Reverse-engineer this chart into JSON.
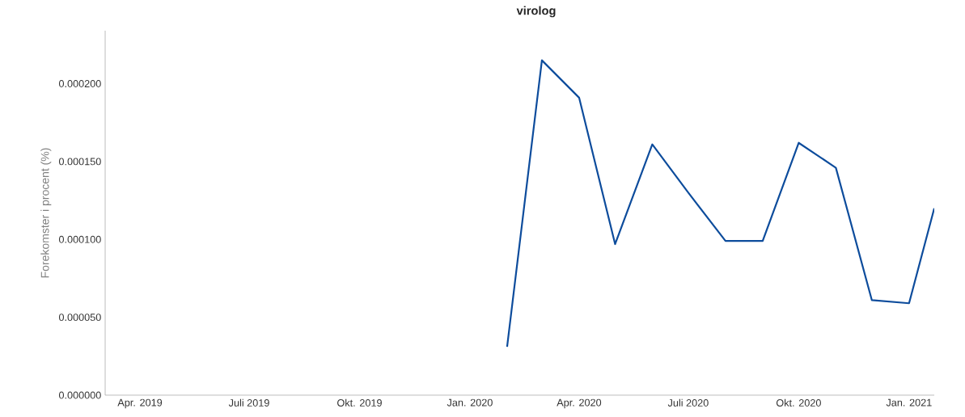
{
  "chart_data": {
    "type": "line",
    "title": "virolog",
    "ylabel": "Forekomster i procent (%)",
    "x": [
      "2020-02-01",
      "2020-03-01",
      "2020-04-01",
      "2020-05-01",
      "2020-06-01",
      "2020-07-01",
      "2020-08-01",
      "2020-09-01",
      "2020-10-01",
      "2020-11-01",
      "2020-12-01",
      "2021-01-01",
      "2021-01-22"
    ],
    "values": [
      3.1e-05,
      0.000215,
      0.000191,
      9.7e-05,
      0.000161,
      0.00013,
      9.9e-05,
      9.9e-05,
      0.000162,
      0.000146,
      6.1e-05,
      5.9e-05,
      0.00012
    ],
    "color": "#0d4c9c",
    "xlim": [
      "2019-03-03",
      "2021-01-22"
    ],
    "ylim": [
      0,
      0.000234
    ],
    "xticks": [
      {
        "value": "2019-04-01",
        "label": "Apr. 2019"
      },
      {
        "value": "2019-07-01",
        "label": "Juli 2019"
      },
      {
        "value": "2019-10-01",
        "label": "Okt. 2019"
      },
      {
        "value": "2020-01-01",
        "label": "Jan. 2020"
      },
      {
        "value": "2020-04-01",
        "label": "Apr. 2020"
      },
      {
        "value": "2020-07-01",
        "label": "Juli 2020"
      },
      {
        "value": "2020-10-01",
        "label": "Okt. 2020"
      },
      {
        "value": "2021-01-01",
        "label": "Jan. 2021"
      }
    ],
    "yticks": [
      {
        "value": 0,
        "label": "0.000000"
      },
      {
        "value": 5e-05,
        "label": "0.000050"
      },
      {
        "value": 0.0001,
        "label": "0.000100"
      },
      {
        "value": 0.00015,
        "label": "0.000150"
      },
      {
        "value": 0.0002,
        "label": "0.000200"
      }
    ]
  }
}
